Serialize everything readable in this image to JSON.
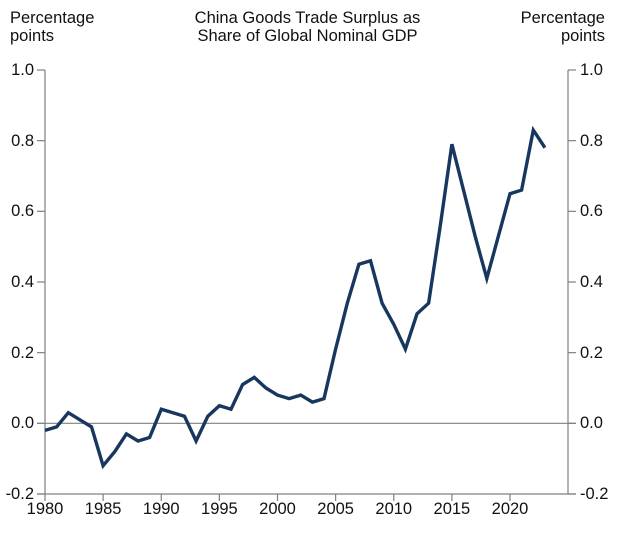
{
  "chart_data": {
    "type": "line",
    "title": "China Goods Trade Surplus as Share of Global Nominal GDP",
    "title_lines": [
      "China Goods Trade Surplus as",
      "Share of Global Nominal GDP"
    ],
    "left_axis_unit": {
      "line1": "Percentage",
      "line2": "points"
    },
    "right_axis_unit": {
      "line1": "Percentage",
      "line2": "points"
    },
    "x": [
      1980,
      1981,
      1982,
      1983,
      1984,
      1985,
      1986,
      1987,
      1988,
      1989,
      1990,
      1991,
      1992,
      1993,
      1994,
      1995,
      1996,
      1997,
      1998,
      1999,
      2000,
      2001,
      2002,
      2003,
      2004,
      2005,
      2006,
      2007,
      2008,
      2009,
      2010,
      2011,
      2012,
      2013,
      2014,
      2015,
      2016,
      2017,
      2018,
      2019,
      2020,
      2021,
      2022,
      2023
    ],
    "series": [
      {
        "name": "China goods trade surplus, share of global nominal GDP",
        "values": [
          -0.02,
          -0.01,
          0.03,
          0.01,
          -0.01,
          -0.12,
          -0.08,
          -0.03,
          -0.05,
          -0.04,
          0.04,
          0.03,
          0.02,
          -0.05,
          0.02,
          0.05,
          0.04,
          0.11,
          0.13,
          0.1,
          0.08,
          0.07,
          0.08,
          0.06,
          0.07,
          0.21,
          0.34,
          0.45,
          0.46,
          0.34,
          0.28,
          0.21,
          0.31,
          0.34,
          0.56,
          0.79,
          0.66,
          0.53,
          0.41,
          0.53,
          0.65,
          0.66,
          0.83,
          0.78
        ]
      }
    ],
    "xlabel": "",
    "ylabel": "Percentage points",
    "ylim": [
      -0.2,
      1.0
    ],
    "xlim": [
      1980,
      2025
    ],
    "yticks": [
      1.0,
      0.8,
      0.6,
      0.4,
      0.2,
      0.0,
      -0.2
    ],
    "ytick_labels": [
      "1.0",
      "0.8",
      "0.6",
      "0.4",
      "0.2",
      "0.0",
      "-0.2"
    ],
    "xticks": [
      1980,
      1985,
      1990,
      1995,
      2000,
      2005,
      2010,
      2015,
      2020
    ],
    "grid": "zero-line-only",
    "legend": "none",
    "colors": {
      "line": "#17375e",
      "axis": "#808080",
      "zero_line": "#808080",
      "text": "#111111",
      "background": "#ffffff"
    }
  }
}
